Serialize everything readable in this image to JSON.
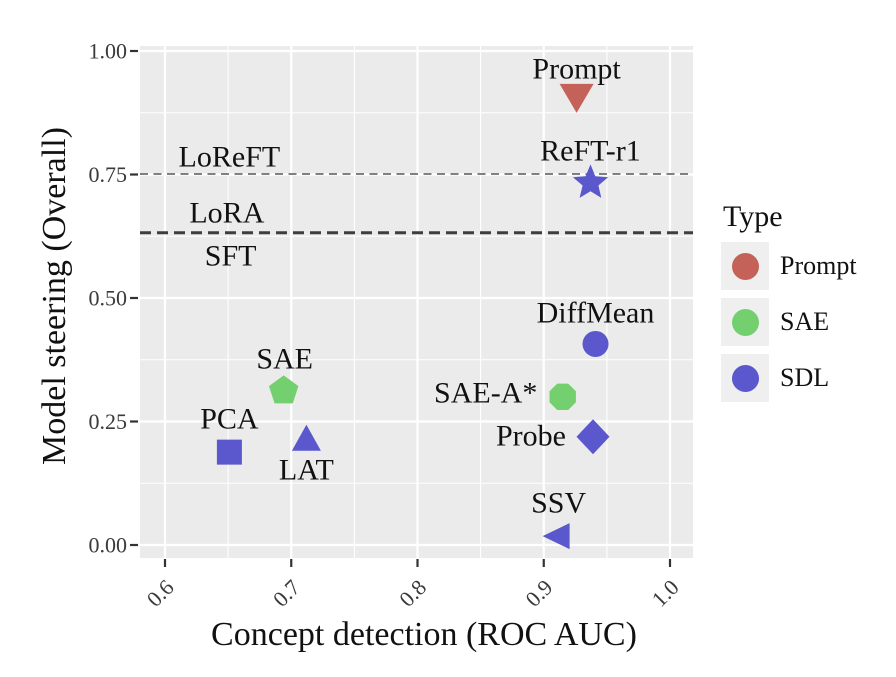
{
  "figure": {
    "x_axis_title": "Concept detection (ROC AUC)",
    "y_axis_title": "Model steering (Overall)"
  },
  "legend": {
    "title": "Type",
    "entries": [
      {
        "label": "Prompt",
        "color": "#C4625A"
      },
      {
        "label": "SAE",
        "color": "#74D06F"
      },
      {
        "label": "SDL",
        "color": "#5B57CC"
      }
    ]
  },
  "colors": {
    "panel_background": "#EBEBEB",
    "gridline": "#FFFFFF",
    "tick_text": "#3A3A3A",
    "annotation_text": "#111111",
    "reference_line_light": "#6F6F6F",
    "reference_line_dark": "#3E3E3E"
  },
  "chart_data": {
    "type": "scatter",
    "title": "",
    "xlabel": "Concept detection (ROC AUC)",
    "ylabel": "Model steering (Overall)",
    "xlim": [
      0.58,
      1.018
    ],
    "ylim": [
      -0.026,
      1.01
    ],
    "grid": true,
    "legend_position": "right",
    "x_ticks": [
      {
        "value": 0.6,
        "label": "0.6"
      },
      {
        "value": 0.7,
        "label": "0.7"
      },
      {
        "value": 0.8,
        "label": "0.8"
      },
      {
        "value": 0.9,
        "label": "0.9"
      },
      {
        "value": 1.0,
        "label": "1.0"
      }
    ],
    "y_ticks": [
      {
        "value": 0.0,
        "label": "0.00"
      },
      {
        "value": 0.25,
        "label": "0.25"
      },
      {
        "value": 0.5,
        "label": "0.50"
      },
      {
        "value": 0.75,
        "label": "0.75"
      },
      {
        "value": 1.0,
        "label": "1.00"
      }
    ],
    "x_minor_ticks": [
      0.65,
      0.75,
      0.85,
      0.95
    ],
    "y_minor_ticks": [
      0.125,
      0.375,
      0.625,
      0.875
    ],
    "type_colors": {
      "Prompt": "#C4625A",
      "SAE": "#74D06F",
      "SDL": "#5B57CC"
    },
    "points": [
      {
        "label": "Prompt",
        "type": "Prompt",
        "marker": "triangle-down",
        "x": 0.926,
        "y": 0.907,
        "label_offset": [
          0,
          -29
        ]
      },
      {
        "label": "ReFT-r1",
        "type": "SDL",
        "marker": "star",
        "x": 0.937,
        "y": 0.733,
        "label_offset": [
          0,
          -33
        ]
      },
      {
        "label": "DiffMean",
        "type": "SDL",
        "marker": "circle",
        "x": 0.941,
        "y": 0.407,
        "label_offset": [
          0,
          -32
        ]
      },
      {
        "label": "SAE-A*",
        "type": "SAE",
        "marker": "octagon",
        "x": 0.915,
        "y": 0.3,
        "label_offset": [
          -77,
          -5
        ]
      },
      {
        "label": "Probe",
        "type": "SDL",
        "marker": "diamond",
        "x": 0.939,
        "y": 0.219,
        "label_offset": [
          -62,
          -2
        ]
      },
      {
        "label": "SSV",
        "type": "SDL",
        "marker": "triangle-left",
        "x": 0.911,
        "y": 0.018,
        "label_offset": [
          1,
          -34
        ]
      },
      {
        "label": "SAE",
        "type": "SAE",
        "marker": "pentagon",
        "x": 0.694,
        "y": 0.312,
        "label_offset": [
          1,
          -33
        ]
      },
      {
        "label": "PCA",
        "type": "SDL",
        "marker": "square",
        "x": 0.651,
        "y": 0.188,
        "label_offset": [
          0,
          -34
        ]
      },
      {
        "label": "LAT",
        "type": "SDL",
        "marker": "triangle-up",
        "x": 0.712,
        "y": 0.215,
        "label_offset": [
          0,
          30
        ]
      }
    ],
    "reference_lines": [
      {
        "y": 0.751,
        "color": "#6F6F6F",
        "width": 1.8,
        "dash": "8 5.5",
        "labels": [
          {
            "text": "LoReFT",
            "x": 0.651,
            "y": 0.787
          }
        ]
      },
      {
        "y": 0.632,
        "color": "#3E3E3E",
        "width": 3,
        "dash": "11 6",
        "labels": [
          {
            "text": "LoRA",
            "x": 0.649,
            "y": 0.674
          },
          {
            "text": "SFT",
            "x": 0.652,
            "y": 0.587
          }
        ]
      }
    ]
  }
}
